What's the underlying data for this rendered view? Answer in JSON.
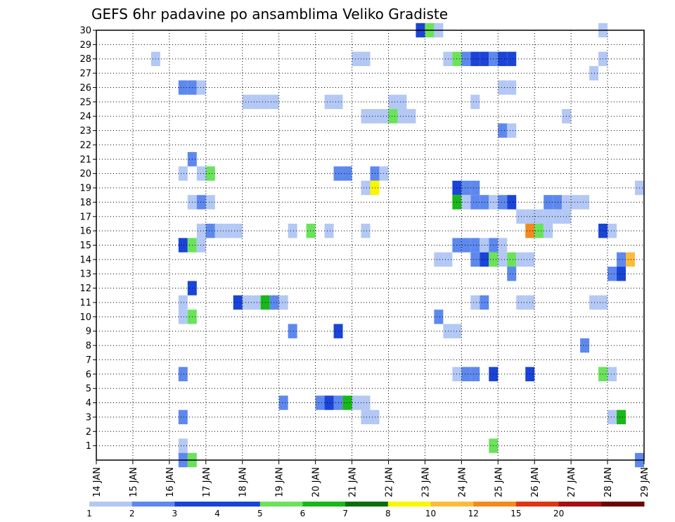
{
  "chart_data": {
    "type": "heatmap",
    "title": "GEFS 6hr padavine po ansamblima Veliko Gradiste",
    "xlabel": "",
    "ylabel": "",
    "x_ticks": [
      "14 JAN",
      "15 JAN",
      "16 JAN",
      "17 JAN",
      "18 JAN",
      "19 JAN",
      "20 JAN",
      "21 JAN",
      "22 JAN",
      "23 JAN",
      "24 JAN",
      "25 JAN",
      "26 JAN",
      "27 JAN",
      "28 JAN",
      "29 JAN"
    ],
    "x_range_days": [
      0,
      15
    ],
    "y_ticks": [
      1,
      2,
      3,
      4,
      5,
      6,
      7,
      8,
      9,
      10,
      11,
      12,
      13,
      14,
      15,
      16,
      17,
      18,
      19,
      20,
      21,
      22,
      23,
      24,
      25,
      26,
      27,
      28,
      29,
      30
    ],
    "y_range": [
      0,
      30
    ],
    "grid": true,
    "legend": {
      "placement": "bottom",
      "labels": [
        "1",
        "2",
        "3",
        "4",
        "5",
        "6",
        "7",
        "8",
        "10",
        "12",
        "15",
        "20"
      ],
      "colors": [
        "#b3c8f5",
        "#5d88ee",
        "#1a44d8",
        "#1a44d8",
        "#6ae35a",
        "#17b817",
        "#0b6e0b",
        "#f7f700",
        "#fbbb3c",
        "#f28a1d",
        "#df3412",
        "#a50f0f",
        "#6b0606"
      ]
    },
    "step_hours": 6,
    "cells": [
      [
        8.75,
        30,
        3
      ],
      [
        9.0,
        30,
        5
      ],
      [
        9.25,
        30,
        1
      ],
      [
        13.75,
        30,
        1
      ],
      [
        1.5,
        28,
        1
      ],
      [
        7.0,
        28,
        1
      ],
      [
        7.25,
        28,
        1
      ],
      [
        9.5,
        28,
        1
      ],
      [
        9.75,
        28,
        5
      ],
      [
        10.0,
        28,
        2
      ],
      [
        10.25,
        28,
        3
      ],
      [
        10.5,
        28,
        3
      ],
      [
        10.75,
        28,
        2
      ],
      [
        11.0,
        28,
        3
      ],
      [
        11.25,
        28,
        3
      ],
      [
        13.75,
        28,
        1
      ],
      [
        13.5,
        27,
        1
      ],
      [
        2.25,
        26,
        2
      ],
      [
        2.5,
        26,
        2
      ],
      [
        2.75,
        26,
        1
      ],
      [
        11.0,
        26,
        1
      ],
      [
        11.25,
        26,
        1
      ],
      [
        4.0,
        25,
        1
      ],
      [
        4.25,
        25,
        1
      ],
      [
        4.5,
        25,
        1
      ],
      [
        4.75,
        25,
        1
      ],
      [
        6.25,
        25,
        1
      ],
      [
        6.5,
        25,
        1
      ],
      [
        8.0,
        25,
        1
      ],
      [
        8.25,
        25,
        1
      ],
      [
        10.25,
        25,
        1
      ],
      [
        7.25,
        24,
        1
      ],
      [
        7.5,
        24,
        1
      ],
      [
        7.75,
        24,
        1
      ],
      [
        8.0,
        24,
        5
      ],
      [
        8.25,
        24,
        1
      ],
      [
        8.5,
        24,
        1
      ],
      [
        12.75,
        24,
        1
      ],
      [
        11.0,
        23,
        2
      ],
      [
        11.25,
        23,
        1
      ],
      [
        2.5,
        21,
        2
      ],
      [
        2.25,
        20,
        1
      ],
      [
        2.75,
        20,
        1
      ],
      [
        3.0,
        20,
        5
      ],
      [
        6.5,
        20,
        2
      ],
      [
        6.75,
        20,
        2
      ],
      [
        7.5,
        20,
        2
      ],
      [
        7.75,
        20,
        1
      ],
      [
        7.25,
        19,
        1
      ],
      [
        7.5,
        19,
        8
      ],
      [
        9.75,
        19,
        3
      ],
      [
        10.0,
        19,
        2
      ],
      [
        10.25,
        19,
        2
      ],
      [
        14.75,
        19,
        1
      ],
      [
        2.5,
        18,
        1
      ],
      [
        2.75,
        18,
        2
      ],
      [
        3.0,
        18,
        1
      ],
      [
        9.75,
        18,
        6
      ],
      [
        10.0,
        18,
        1
      ],
      [
        10.25,
        18,
        2
      ],
      [
        10.5,
        18,
        2
      ],
      [
        10.75,
        18,
        1
      ],
      [
        11.0,
        18,
        2
      ],
      [
        11.25,
        18,
        3
      ],
      [
        12.25,
        18,
        2
      ],
      [
        12.5,
        18,
        2
      ],
      [
        12.75,
        18,
        1
      ],
      [
        13.0,
        18,
        1
      ],
      [
        13.25,
        18,
        1
      ],
      [
        11.5,
        17,
        1
      ],
      [
        11.75,
        17,
        1
      ],
      [
        12.0,
        17,
        1
      ],
      [
        12.25,
        17,
        1
      ],
      [
        12.5,
        17,
        1
      ],
      [
        12.75,
        17,
        1
      ],
      [
        2.75,
        16,
        1
      ],
      [
        3.0,
        16,
        2
      ],
      [
        3.25,
        16,
        1
      ],
      [
        3.5,
        16,
        1
      ],
      [
        3.75,
        16,
        1
      ],
      [
        5.25,
        16,
        1
      ],
      [
        5.75,
        16,
        5
      ],
      [
        6.25,
        16,
        1
      ],
      [
        7.25,
        16,
        1
      ],
      [
        11.75,
        16,
        10
      ],
      [
        12.0,
        16,
        5
      ],
      [
        12.25,
        16,
        1
      ],
      [
        13.75,
        16,
        3
      ],
      [
        14.0,
        16,
        1
      ],
      [
        2.25,
        15,
        3
      ],
      [
        2.5,
        15,
        5
      ],
      [
        2.75,
        15,
        1
      ],
      [
        9.75,
        15,
        2
      ],
      [
        10.0,
        15,
        2
      ],
      [
        10.25,
        15,
        2
      ],
      [
        10.5,
        15,
        1
      ],
      [
        10.75,
        15,
        2
      ],
      [
        11.0,
        15,
        1
      ],
      [
        9.25,
        14,
        1
      ],
      [
        9.5,
        14,
        1
      ],
      [
        10.25,
        14,
        2
      ],
      [
        10.5,
        14,
        3
      ],
      [
        10.75,
        14,
        5
      ],
      [
        11.0,
        14,
        1
      ],
      [
        11.25,
        14,
        5
      ],
      [
        11.5,
        14,
        1
      ],
      [
        11.75,
        14,
        1
      ],
      [
        14.25,
        14,
        2
      ],
      [
        14.5,
        14,
        9
      ],
      [
        11.25,
        13,
        2
      ],
      [
        14.0,
        13,
        2
      ],
      [
        14.25,
        13,
        3
      ],
      [
        2.5,
        12,
        3
      ],
      [
        2.25,
        11,
        1
      ],
      [
        3.75,
        11,
        3
      ],
      [
        4.0,
        11,
        1
      ],
      [
        4.25,
        11,
        1
      ],
      [
        4.5,
        11,
        6
      ],
      [
        4.75,
        11,
        2
      ],
      [
        5.0,
        11,
        1
      ],
      [
        10.25,
        11,
        1
      ],
      [
        10.5,
        11,
        2
      ],
      [
        11.5,
        11,
        1
      ],
      [
        11.75,
        11,
        1
      ],
      [
        13.5,
        11,
        1
      ],
      [
        13.75,
        11,
        1
      ],
      [
        2.25,
        10,
        1
      ],
      [
        2.5,
        10,
        5
      ],
      [
        9.25,
        10,
        2
      ],
      [
        5.25,
        9,
        2
      ],
      [
        6.5,
        9,
        3
      ],
      [
        9.5,
        9,
        1
      ],
      [
        9.75,
        9,
        1
      ],
      [
        13.25,
        8,
        2
      ],
      [
        2.25,
        6,
        2
      ],
      [
        9.75,
        6,
        1
      ],
      [
        10.0,
        6,
        2
      ],
      [
        10.25,
        6,
        2
      ],
      [
        10.75,
        6,
        3
      ],
      [
        11.75,
        6,
        3
      ],
      [
        13.75,
        6,
        5
      ],
      [
        14.0,
        6,
        1
      ],
      [
        5.0,
        4,
        2
      ],
      [
        6.0,
        4,
        2
      ],
      [
        6.25,
        4,
        3
      ],
      [
        6.5,
        4,
        2
      ],
      [
        6.75,
        4,
        6
      ],
      [
        7.0,
        4,
        1
      ],
      [
        7.25,
        4,
        1
      ],
      [
        2.25,
        3,
        2
      ],
      [
        7.25,
        3,
        1
      ],
      [
        7.5,
        3,
        1
      ],
      [
        14.0,
        3,
        1
      ],
      [
        14.25,
        3,
        6
      ],
      [
        10.75,
        1,
        5
      ],
      [
        2.25,
        1,
        1
      ],
      [
        2.25,
        0,
        2
      ],
      [
        2.5,
        0,
        5
      ],
      [
        14.75,
        0,
        2
      ]
    ]
  }
}
